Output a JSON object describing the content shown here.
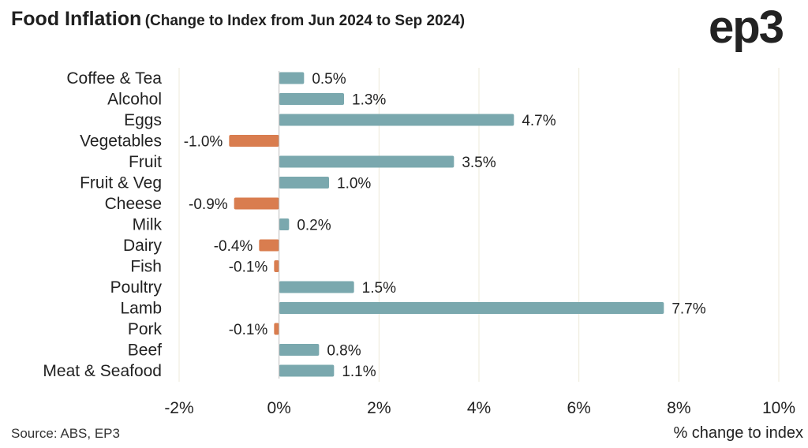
{
  "header": {
    "title": "Food Inflation",
    "subtitle_open": "(",
    "subtitle": "Change to Index from Jun  2024 to Sep 2024",
    "subtitle_close": ")",
    "logo_text": "ep3"
  },
  "footer": {
    "source": "Source: ABS, EP3",
    "x_axis_label": "% change to index"
  },
  "colors": {
    "positive": "#7aa8ae",
    "negative": "#d97d4f",
    "grid": "#ece9d8"
  },
  "chart_data": {
    "type": "bar",
    "orientation": "horizontal",
    "title": "Food Inflation (Change to Index from Jun  2024 to Sep 2024)",
    "xlabel": "% change to index",
    "ylabel": "",
    "xlim": [
      -2,
      10
    ],
    "xticks": [
      -2,
      0,
      2,
      4,
      6,
      8,
      10
    ],
    "xtick_labels": [
      "-2%",
      "0%",
      "2%",
      "4%",
      "6%",
      "8%",
      "10%"
    ],
    "categories": [
      "Coffee & Tea",
      "Alcohol",
      "Eggs",
      "Vegetables",
      "Fruit",
      "Fruit & Veg",
      "Cheese",
      "Milk",
      "Dairy",
      "Fish",
      "Poultry",
      "Lamb",
      "Pork",
      "Beef",
      "Meat & Seafood"
    ],
    "values": [
      0.5,
      1.3,
      4.7,
      -1.0,
      3.5,
      1.0,
      -0.9,
      0.2,
      -0.4,
      -0.1,
      1.5,
      7.7,
      -0.1,
      0.8,
      1.1
    ],
    "value_labels": [
      "0.5%",
      "1.3%",
      "4.7%",
      "-1.0%",
      "3.5%",
      "1.0%",
      "-0.9%",
      "0.2%",
      "-0.4%",
      "-0.1%",
      "1.5%",
      "7.7%",
      "-0.1%",
      "0.8%",
      "1.1%"
    ],
    "grid": true,
    "legend": "none"
  }
}
